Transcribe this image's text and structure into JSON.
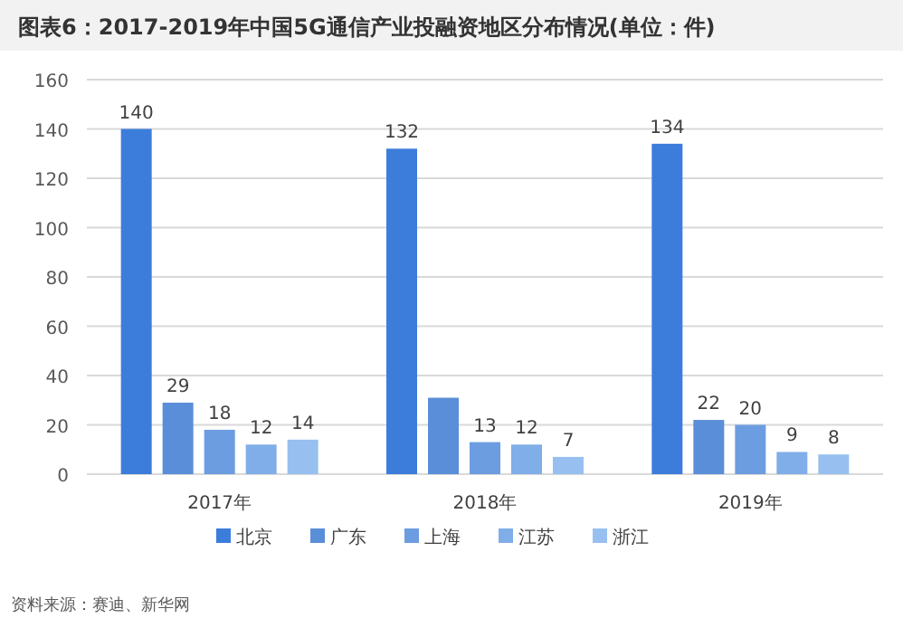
{
  "chart_data": {
    "type": "bar",
    "title": "图表6：2017-2019年中国5G通信产业投融资地区分布情况(单位：件)",
    "categories": [
      "2017年",
      "2018年",
      "2019年"
    ],
    "series": [
      {
        "name": "北京",
        "color": "#3c7ddb",
        "values": [
          140,
          132,
          134
        ],
        "value_labels": [
          "140",
          "132",
          "134"
        ]
      },
      {
        "name": "广东",
        "color": "#5a8ed8",
        "values": [
          29,
          31,
          22
        ],
        "value_labels": [
          "29",
          null,
          "22"
        ]
      },
      {
        "name": "上海",
        "color": "#6c9de0",
        "values": [
          18,
          13,
          20
        ],
        "value_labels": [
          "18",
          "13",
          "20"
        ]
      },
      {
        "name": "江苏",
        "color": "#80aee8",
        "values": [
          12,
          12,
          9
        ],
        "value_labels": [
          "12",
          "12",
          "9"
        ]
      },
      {
        "name": "浙江",
        "color": "#97c0f0",
        "values": [
          14,
          7,
          8
        ],
        "value_labels": [
          "14",
          "7",
          "8"
        ]
      }
    ],
    "ylim": [
      0,
      160
    ],
    "yticks": [
      0,
      20,
      40,
      60,
      80,
      100,
      120,
      140,
      160
    ],
    "grid": "y",
    "legend": "bottom",
    "annotations": [
      "资料来源：赛迪、新华网"
    ]
  }
}
